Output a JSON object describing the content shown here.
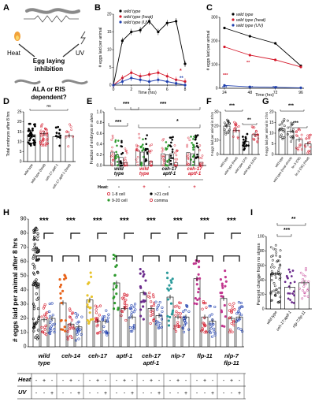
{
  "panels": {
    "A": {
      "letter": "A",
      "stimulus_left": "Heat",
      "stimulus_right": "UV",
      "center_lines": [
        "Egg laying",
        "inhibition"
      ],
      "question_lines": [
        "ALA or RIS",
        "dependent?"
      ]
    },
    "B": {
      "letter": "B",
      "ylabel": "# eggs laid per animal",
      "xlabel": "Time (hrs)",
      "yticks": [
        "0",
        "5",
        "10",
        "15",
        "20"
      ],
      "xticks": [
        "0",
        "2",
        "4",
        "6",
        "8"
      ],
      "legend": [
        "wild type",
        "wild type (heat)",
        "wild type (UV)"
      ]
    },
    "C": {
      "letter": "C",
      "ylabel": "# eggs laid per animal",
      "xlabel": "Time (hrs)",
      "yticks": [
        "0",
        "100",
        "200",
        "300"
      ],
      "xticks": [
        "24",
        "48",
        "72",
        "96"
      ],
      "legend": [
        "wild type",
        "wild type (heat)",
        "wild type (UV)"
      ],
      "stars": [
        "***",
        "**",
        "***",
        "***",
        "***"
      ]
    },
    "D": {
      "letter": "D",
      "ylabel": "Total embryos after 8 hrs",
      "yticks": [
        "0",
        "5",
        "10",
        "15",
        "20",
        "25"
      ],
      "groups": [
        "wild type",
        "wild type (heat)",
        "ceh-17;aptf-1",
        "ceh-17;aptf-1 (heat)"
      ],
      "ns": "ns"
    },
    "E": {
      "letter": "E",
      "ylabel_prefix": "Fraction of embryos ",
      "ylabel_italic": "in utero",
      "yticks": [
        "0.0",
        "0.2",
        "0.4",
        "0.6",
        "0.8",
        "1.0"
      ],
      "groups": [
        {
          "name": "wild type",
          "lines": [
            "wild",
            "type"
          ],
          "heat": "-",
          "red": false
        },
        {
          "name": "wild type",
          "lines": [
            "wild",
            "type"
          ],
          "heat": "+",
          "red": true
        },
        {
          "name": "ceh-17 aptf-1",
          "lines": [
            "ceh-17",
            "aptf-1"
          ],
          "heat": "-",
          "red": false
        },
        {
          "name": "ceh-17 aptf-1",
          "lines": [
            "ceh-17",
            "aptf-1"
          ],
          "heat": "+",
          "red": true
        }
      ],
      "heat_label": "Heat:",
      "stars": [
        "***",
        "***",
        "***",
        "*"
      ],
      "legend": [
        "1-8 cell",
        ">21 cell",
        "9-20 cell",
        "comma"
      ]
    },
    "F": {
      "letter": "F",
      "ylabel": "# eggs laid per animal in 8 hrs",
      "yticks": [
        "0",
        "10",
        "20",
        "30"
      ],
      "groups": [
        "wild type",
        "wild type (heat)",
        "wild type (UV)",
        "wild type (LED)"
      ],
      "stars": [
        "***",
        "**"
      ]
    },
    "G": {
      "letter": "G",
      "ylabel": "# eggs laid per animal in 2 hrs",
      "yticks": [
        "0",
        "5",
        "10",
        "15",
        "20"
      ],
      "groups": [
        "wild type",
        "wild type (heat shock)",
        "lin-3 (OE)",
        "lin-3 (OE) (heat)"
      ],
      "stars": [
        "***",
        "***"
      ]
    },
    "H": {
      "letter": "H",
      "ylabel": "# eggs laid per animal after 8 hrs",
      "yticks": [
        "0",
        "10",
        "20",
        "30",
        "40",
        "50",
        "60",
        "70",
        "80",
        "90"
      ],
      "stars": "***",
      "genotypes": [
        {
          "lines": [
            "wild",
            "type"
          ]
        },
        {
          "lines": [
            "ceh-14"
          ]
        },
        {
          "lines": [
            "ceh-17"
          ]
        },
        {
          "lines": [
            "aptf-1"
          ]
        },
        {
          "lines": [
            "ceh-17",
            "aptf-1"
          ]
        },
        {
          "lines": [
            "nlp-7"
          ]
        },
        {
          "lines": [
            "flp-11"
          ]
        },
        {
          "lines": [
            "nlp-7",
            "flp-11"
          ]
        }
      ],
      "row_heat": "Heat",
      "row_uv": "UV",
      "heat_signs": [
        "-",
        "+",
        "-"
      ],
      "uv_signs": [
        "-",
        "-",
        "+"
      ]
    },
    "I": {
      "letter": "I",
      "ylabel": "Percent change from no stress",
      "yticks": [
        "0",
        "20",
        "40",
        "60",
        "80",
        "100"
      ],
      "groups": [
        "wild type",
        "ceh-17;aptf-1",
        "nlp-7;flp-11"
      ],
      "stars": [
        "**",
        "***"
      ]
    }
  },
  "colors": {
    "control": "#000000",
    "heat": "#d4182a",
    "uv": "#1f3fae",
    "green": "#2e9a2e",
    "panelI_mut1": "#6a2a8c",
    "panelI_mut2": "#c2368f"
  },
  "chart_data": [
    {
      "panel": "B",
      "type": "line",
      "x": [
        0,
        1,
        2,
        3,
        4,
        5,
        6,
        7,
        8
      ],
      "ylim": [
        0,
        20
      ],
      "xlim": [
        0,
        8
      ],
      "xlabel": "Time (hrs)",
      "ylabel": "# eggs laid per animal",
      "series": [
        {
          "name": "wild type",
          "values": [
            0,
            12.5,
            15,
            15.5,
            18,
            15,
            17.5,
            18,
            6
          ]
        },
        {
          "name": "wild type (heat)",
          "values": [
            0,
            2,
            3.5,
            2.5,
            3,
            3.5,
            2.5,
            1.5,
            1
          ]
        },
        {
          "name": "wild type (UV)",
          "values": [
            0,
            1,
            2,
            1.5,
            1,
            1.5,
            1,
            0.5,
            0
          ]
        }
      ]
    },
    {
      "panel": "C",
      "type": "line",
      "x": [
        24,
        48,
        72,
        96
      ],
      "ylim": [
        0,
        300
      ],
      "xlim": [
        24,
        96
      ],
      "xlabel": "Time (hrs)",
      "ylabel": "# eggs laid per animal",
      "series": [
        {
          "name": "wild type",
          "values": [
            255,
            220,
            190,
            95
          ]
        },
        {
          "name": "wild type (heat)",
          "values": [
            175,
            140,
            120,
            90
          ]
        },
        {
          "name": "wild type (UV)",
          "values": [
            12,
            6,
            4,
            2
          ]
        }
      ]
    },
    {
      "panel": "D",
      "type": "bar",
      "categories": [
        "wild type",
        "wild type (heat)",
        "ceh-17;aptf-1",
        "ceh-17;aptf-1 (heat)"
      ],
      "values": [
        13.5,
        14,
        12.5,
        13
      ],
      "ylim": [
        0,
        25
      ],
      "ylabel": "Total embryos after 8 hrs"
    },
    {
      "panel": "E",
      "type": "bar",
      "categories": [
        "wild type -",
        "wild type +",
        "ceh-17 aptf-1 -",
        "ceh-17 aptf-1 +"
      ],
      "series": [
        {
          "name": "1-8 cell",
          "values": [
            0.25,
            0.28,
            0.22,
            0.24
          ]
        },
        {
          "name": "9-20 cell",
          "values": [
            0.2,
            0.25,
            0.2,
            0.22
          ]
        },
        {
          "name": ">21 cell",
          "values": [
            0.15,
            0.3,
            0.22,
            0.35
          ]
        },
        {
          "name": "comma",
          "values": [
            0.05,
            0.08,
            0.05,
            0.06
          ]
        }
      ],
      "ylim": [
        0,
        1.0
      ]
    },
    {
      "panel": "F",
      "type": "bar",
      "categories": [
        "wild type",
        "wild type (heat)",
        "wild type (UV)",
        "wild type (LED)"
      ],
      "values": [
        20,
        17,
        9,
        14
      ],
      "ylim": [
        0,
        30
      ],
      "ylabel": "# eggs laid per animal in 8 hrs"
    },
    {
      "panel": "G",
      "type": "bar",
      "categories": [
        "wild type",
        "wild type (heat shock)",
        "lin-3 (OE)",
        "lin-3 (OE) (heat)"
      ],
      "values": [
        12,
        11,
        7,
        5
      ],
      "ylim": [
        0,
        20
      ],
      "ylabel": "# eggs laid per animal in 2 hrs"
    },
    {
      "panel": "H",
      "type": "bar",
      "categories": [
        "wild type",
        "ceh-14",
        "ceh-17",
        "aptf-1",
        "ceh-17 aptf-1",
        "nlp-7",
        "flp-11",
        "nlp-7 flp-11"
      ],
      "series": [
        {
          "name": "no stress",
          "values": [
            45,
            31,
            33,
            45,
            38,
            35,
            48,
            34
          ]
        },
        {
          "name": "heat",
          "values": [
            19,
            16,
            18,
            27,
            27,
            21,
            21,
            20
          ]
        },
        {
          "name": "UV",
          "values": [
            20,
            14,
            18,
            21,
            22,
            21,
            18,
            21
          ]
        }
      ],
      "ylim": [
        0,
        90
      ],
      "ylabel": "# eggs laid per animal after 8 hrs"
    },
    {
      "panel": "I",
      "type": "bar",
      "categories": [
        "wild type",
        "ceh-17;aptf-1",
        "nlp-7;flp-11"
      ],
      "values": [
        48,
        30,
        36
      ],
      "ylim": [
        0,
        100
      ],
      "ylabel": "Percent change from no stress"
    }
  ]
}
